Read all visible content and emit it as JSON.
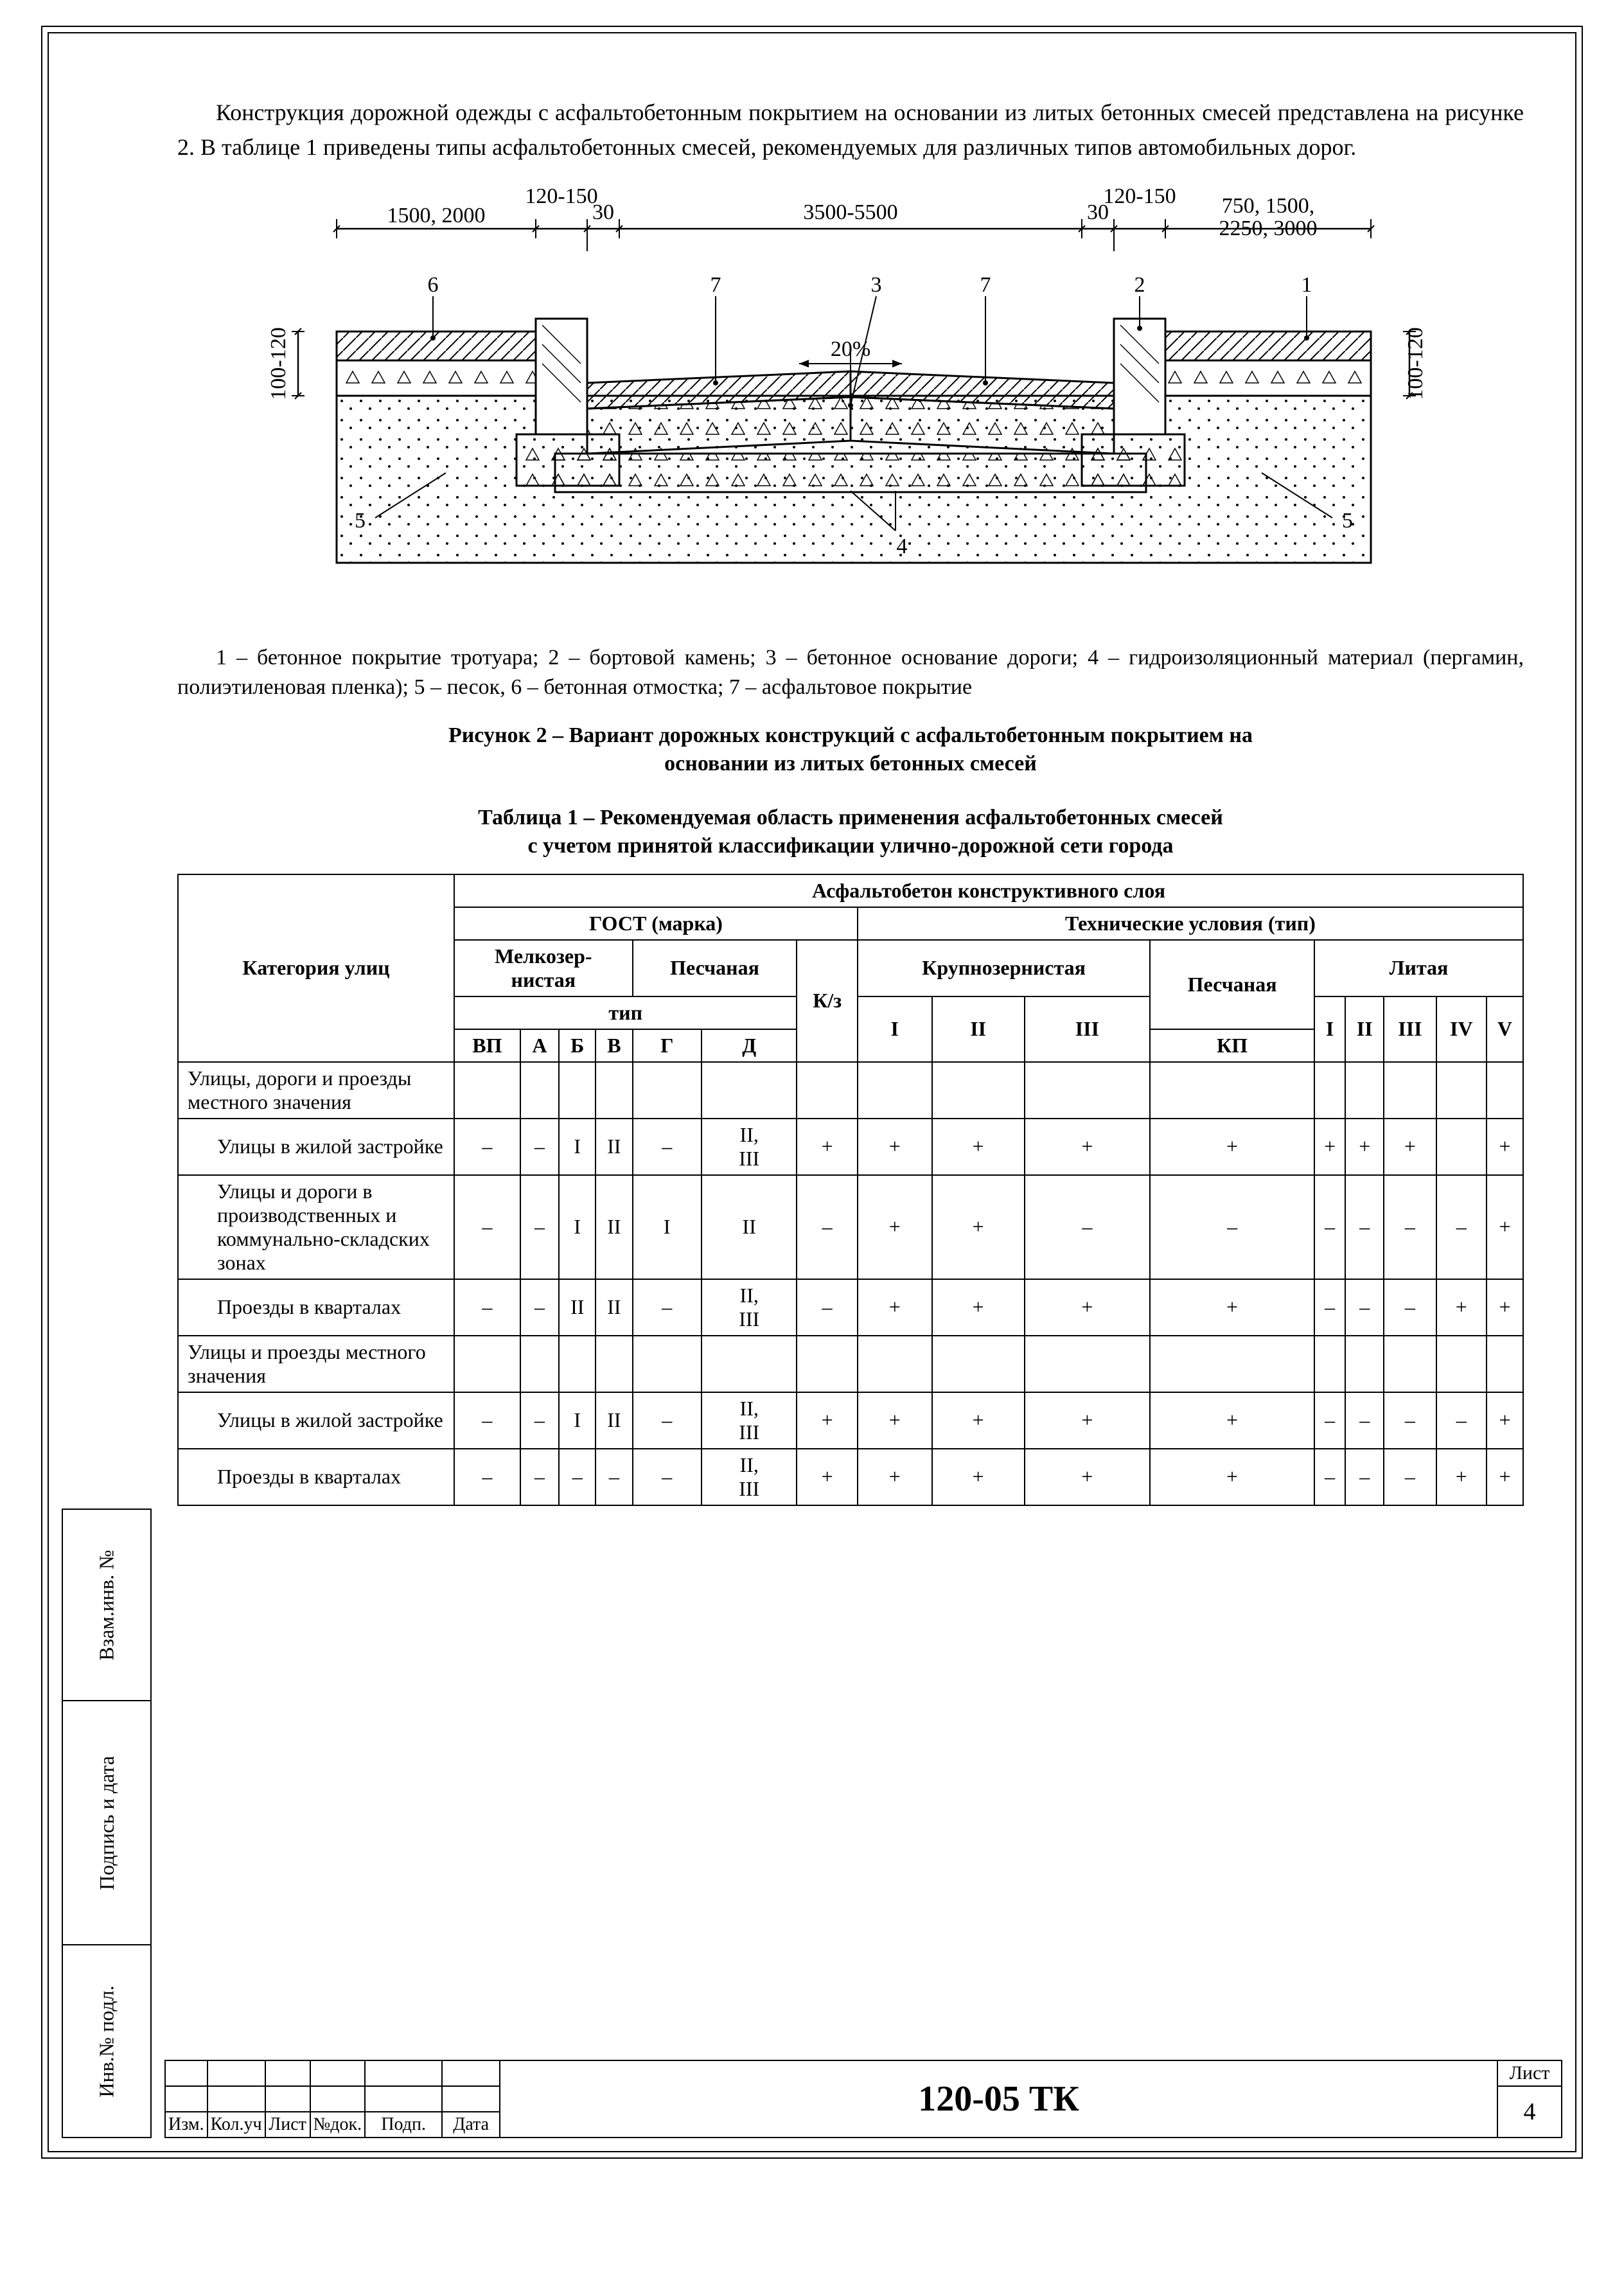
{
  "para1": "Конструкция дорожной одежды с асфальтобетонным покрытием на основании из литых бетонных смесей представлена на рисунке 2. В таблице 1 приведены типы асфальтобетонных смесей, рекомендуемых для различных типов автомобильных дорог.",
  "diagram": {
    "dims": {
      "d1": "1500, 2000",
      "d2": "120-150",
      "d3": "30",
      "d4": "3500-5500",
      "d5": "120-150",
      "d6": "30",
      "d7": "750, 1500,",
      "d7b": "2250, 3000",
      "h1": "100-120",
      "h2": "100-120",
      "slope": "20%"
    },
    "callouts": {
      "c1": "1",
      "c2": "2",
      "c3": "3",
      "c4": "4",
      "c5": "5",
      "c6": "6",
      "c7": "7"
    },
    "colors": {
      "stroke": "#000000",
      "bg": "#ffffff"
    }
  },
  "legend": "1 – бетонное покрытие тротуара; 2 – бортовой камень; 3 – бетонное основание дороги; 4 – гидроизоляционный материал (пергамин, полиэтиленовая пленка); 5 – песок, 6 – бетонная отмостка; 7 – асфальтовое покрытие",
  "fig_caption_1": "Рисунок 2 – Вариант дорожных конструкций с асфальтобетонным покрытием на",
  "fig_caption_2": "основании из литых бетонных смесей",
  "tbl_caption_1": "Таблица 1 – Рекомендуемая область применения асфальтобетонных смесей",
  "tbl_caption_2": "с учетом принятой классификации улично-дорожной сети города",
  "headers": {
    "cat": "Категория улиц",
    "top": "Асфальтобетон конструктивного слоя",
    "gost": "ГОСТ (марка)",
    "tu": "Технические условия (тип)",
    "melko": "Мелкозер-\nнистая",
    "pesch": "Песчаная",
    "kz": "К/з",
    "krupno": "Крупнозернистая",
    "pesch2": "Песчаная",
    "litaya": "Литая",
    "tip": "тип",
    "VP": "ВП",
    "A": "А",
    "B": "Б",
    "V": "В",
    "G": "Г",
    "D": "Д",
    "KP": "КП",
    "I": "I",
    "II": "II",
    "III": "III",
    "IV": "IV",
    "Vn": "V"
  },
  "rows": [
    {
      "label": "Улицы, дороги и проезды местного значения",
      "group": true
    },
    {
      "label": "Улицы в жилой застройке",
      "cells": [
        "–",
        "–",
        "I",
        "II",
        "–",
        "II, III",
        "+",
        "+",
        "+",
        "+",
        "+",
        "+",
        "+",
        "",
        "+"
      ]
    },
    {
      "label": "Улицы и дороги в производственных и коммунально-складских зонах",
      "cells": [
        "–",
        "–",
        "I",
        "II",
        "I",
        "II",
        "–",
        "+",
        "+",
        "–",
        "–",
        "–",
        "–",
        "–",
        "+"
      ]
    },
    {
      "label": "Проезды в кварталах",
      "cells": [
        "–",
        "–",
        "II",
        "II",
        "–",
        "II, III",
        "–",
        "+",
        "+",
        "+",
        "–",
        "–",
        "–",
        "+",
        "+"
      ]
    },
    {
      "label": "Улицы и проезды местного значения",
      "group": true,
      "sep": true
    },
    {
      "label": "Улицы в жилой застройке",
      "cells": [
        "–",
        "–",
        "I",
        "II",
        "–",
        "II, III",
        "+",
        "+",
        "+",
        "+",
        "–",
        "–",
        "–",
        "–",
        "+"
      ]
    },
    {
      "label": "Проезды в кварталах",
      "cells": [
        "–",
        "–",
        "–",
        "–",
        "–",
        "II, III",
        "+",
        "+",
        "+",
        "+",
        "–",
        "–",
        "–",
        "+",
        "+"
      ]
    }
  ],
  "side": {
    "s1": "Взам.инв. №",
    "s2": "Подпись и дата",
    "s3": "Инв.№ подл."
  },
  "tb": {
    "izm": "Изм.",
    "kol": "Кол.уч",
    "list": "Лист",
    "ndok": "№док.",
    "podp": "Подп.",
    "data": "Дата",
    "doc": "120-05 ТК",
    "sheet_label": "Лист",
    "sheet_no": "4"
  }
}
